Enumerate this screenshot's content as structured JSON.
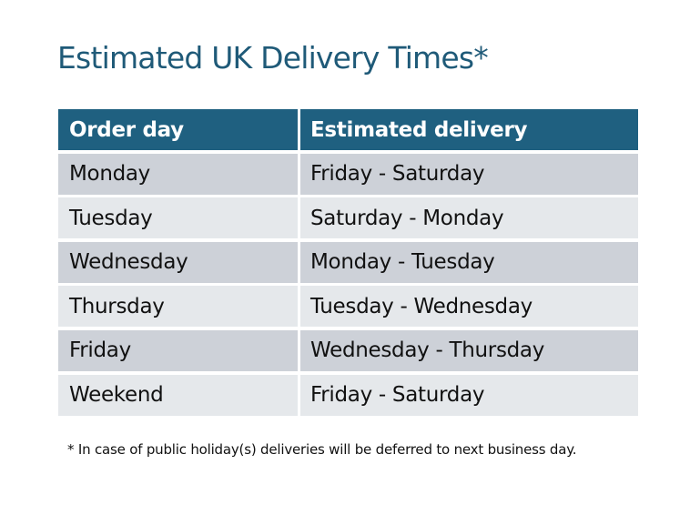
{
  "title": "Estimated UK Delivery Times*",
  "table": {
    "headers": [
      "Order day",
      "Estimated delivery"
    ],
    "rows": [
      [
        "Monday",
        "Friday - Saturday"
      ],
      [
        "Tuesday",
        "Saturday - Monday"
      ],
      [
        "Wednesday",
        "Monday - Tuesday"
      ],
      [
        "Thursday",
        "Tuesday - Wednesday"
      ],
      [
        "Friday",
        "Wednesday - Thursday"
      ],
      [
        "Weekend",
        "Friday - Saturday"
      ]
    ]
  },
  "footnote": "* In case of public holiday(s) deliveries will be deferred to next business day.",
  "colors": {
    "header": "#1f6080",
    "title": "#1f5a78",
    "row_dark": "#cdd1d8",
    "row_light": "#e5e8eb"
  }
}
